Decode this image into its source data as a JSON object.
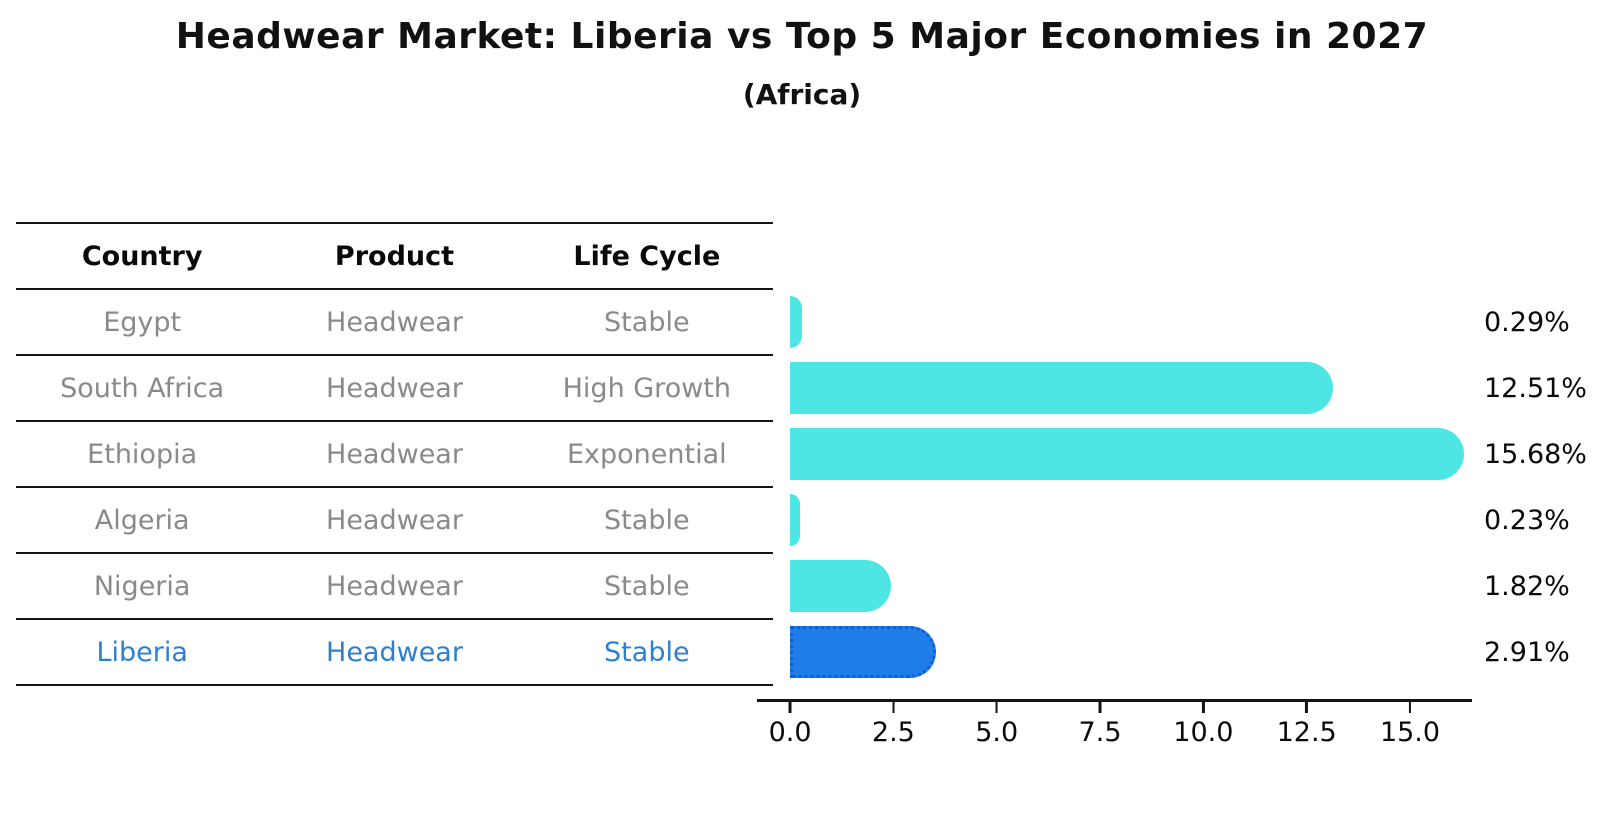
{
  "colors": {
    "table_text": "#8a8a8a",
    "highlight_text": "#2e7fd0",
    "bar": "#4de6e4",
    "axis": "#141414"
  },
  "table": {
    "headers": [
      "Country",
      "Product",
      "Life Cycle"
    ],
    "rows": [
      {
        "country": "Egypt",
        "product": "Headwear",
        "life_cycle": "Stable"
      },
      {
        "country": "South Africa",
        "product": "Headwear",
        "life_cycle": "High Growth"
      },
      {
        "country": "Ethiopia",
        "product": "Headwear",
        "life_cycle": "Exponential"
      },
      {
        "country": "Algeria",
        "product": "Headwear",
        "life_cycle": "Stable"
      },
      {
        "country": "Nigeria",
        "product": "Headwear",
        "life_cycle": "Stable"
      },
      {
        "country": "Liberia",
        "product": "Headwear",
        "life_cycle": "Stable"
      }
    ],
    "highlight_row": "Liberia"
  },
  "chart_data": {
    "type": "bar",
    "orientation": "horizontal",
    "title": "Headwear Market: Liberia vs Top 5 Major Economies in 2027",
    "subtitle": "(Africa)",
    "categories": [
      "Egypt",
      "South Africa",
      "Ethiopia",
      "Algeria",
      "Nigeria",
      "Liberia"
    ],
    "values": [
      0.29,
      12.51,
      15.68,
      0.23,
      1.82,
      2.91
    ],
    "value_labels": [
      "0.29%",
      "12.51%",
      "15.68%",
      "0.23%",
      "1.82%",
      "2.91%"
    ],
    "xlabel": "",
    "ylabel": "",
    "xlim": [
      -0.8,
      16.5
    ],
    "xticks": [
      0.0,
      2.5,
      5.0,
      7.5,
      10.0,
      12.5,
      15.0
    ],
    "xtick_labels": [
      "0.0",
      "2.5",
      "5.0",
      "7.5",
      "10.0",
      "12.5",
      "15.0"
    ],
    "grid": false,
    "legend": false,
    "highlight_index": 5,
    "bar_color": "#4de6e4",
    "highlight_color": "#1e7de8",
    "highlight_edge_color": "#0e5fd6",
    "units": "percent"
  }
}
